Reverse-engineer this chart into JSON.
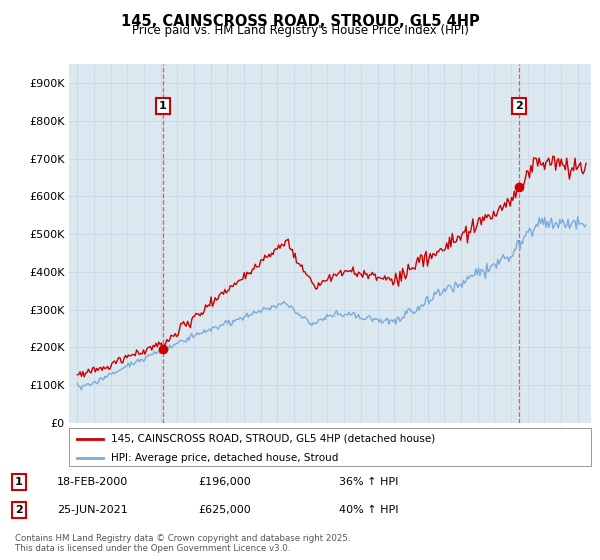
{
  "title": "145, CAINSCROSS ROAD, STROUD, GL5 4HP",
  "subtitle": "Price paid vs. HM Land Registry's House Price Index (HPI)",
  "red_label": "145, CAINSCROSS ROAD, STROUD, GL5 4HP (detached house)",
  "blue_label": "HPI: Average price, detached house, Stroud",
  "annotation1_date": "18-FEB-2000",
  "annotation1_price": "£196,000",
  "annotation1_hpi": "36% ↑ HPI",
  "annotation2_date": "25-JUN-2021",
  "annotation2_price": "£625,000",
  "annotation2_hpi": "40% ↑ HPI",
  "footer": "Contains HM Land Registry data © Crown copyright and database right 2025.\nThis data is licensed under the Open Government Licence v3.0.",
  "vline1_x": 2000.13,
  "vline2_x": 2021.49,
  "ylim_min": 0,
  "ylim_max": 950000,
  "xlim_min": 1994.5,
  "xlim_max": 2025.8,
  "red_color": "#cc0000",
  "blue_color": "#7aabdb",
  "vline_color": "#dd4444",
  "grid_color": "#c8d8e8",
  "bg_color": "#ffffff",
  "plot_bg_color": "#dce8f0"
}
